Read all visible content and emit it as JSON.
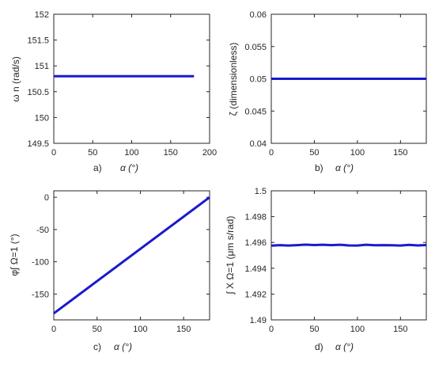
{
  "chart_data": [
    {
      "type": "line",
      "panel_label": "a)",
      "xlabel": "α (°)",
      "ylabel": "ω n (rad/s)",
      "xlim": [
        0,
        200
      ],
      "ylim": [
        149.5,
        152
      ],
      "xticks": [
        "0",
        "50",
        "100",
        "150",
        "200"
      ],
      "yticks": [
        "149.5",
        "150",
        "150.5",
        "151",
        "151.5",
        "152"
      ],
      "x": [
        0,
        180
      ],
      "series": [
        {
          "values": [
            150.8,
            150.8
          ]
        }
      ],
      "color": "#1a1acc",
      "grid": false
    },
    {
      "type": "line",
      "panel_label": "b)",
      "xlabel": "α (°)",
      "ylabel": "ζ (dimensionless)",
      "xlim": [
        0,
        180
      ],
      "ylim": [
        0.04,
        0.06
      ],
      "xticks": [
        "0",
        "50",
        "100",
        "150"
      ],
      "yticks": [
        "0.04",
        "0.045",
        "0.05",
        "0.055",
        "0.06"
      ],
      "x": [
        0,
        180
      ],
      "series": [
        {
          "values": [
            0.05,
            0.05
          ]
        }
      ],
      "color": "#1a1acc",
      "grid": false
    },
    {
      "type": "line",
      "panel_label": "c)",
      "xlabel": "α (°)",
      "ylabel": "φ∫ Ω=1 (°)",
      "xlim": [
        0,
        180
      ],
      "ylim": [
        -190,
        10
      ],
      "xticks": [
        "0",
        "50",
        "100",
        "150"
      ],
      "yticks": [
        "0",
        "-50",
        "-100",
        "-150"
      ],
      "x": [
        0,
        180
      ],
      "series": [
        {
          "values": [
            -180,
            0
          ]
        }
      ],
      "color": "#1a1acc",
      "grid": false
    },
    {
      "type": "line",
      "panel_label": "d)",
      "xlabel": "α (°)",
      "ylabel": "∫ X Ω=1 (μm s/rad)",
      "xlim": [
        0,
        180
      ],
      "ylim": [
        1.49,
        1.5
      ],
      "xticks": [
        "0",
        "50",
        "100",
        "150"
      ],
      "yticks": [
        "1.49",
        "1.492",
        "1.494",
        "1.496",
        "1.498",
        "1.5"
      ],
      "x": [
        0,
        10,
        20,
        30,
        40,
        50,
        60,
        70,
        80,
        90,
        100,
        110,
        120,
        130,
        140,
        150,
        160,
        170,
        180
      ],
      "series": [
        {
          "values": [
            1.49575,
            1.49579,
            1.49576,
            1.49579,
            1.49583,
            1.4958,
            1.49582,
            1.49579,
            1.49582,
            1.49577,
            1.49576,
            1.49582,
            1.49578,
            1.49579,
            1.49578,
            1.49576,
            1.49581,
            1.49577,
            1.4958
          ]
        }
      ],
      "color": "#1a1acc",
      "grid": false
    }
  ]
}
